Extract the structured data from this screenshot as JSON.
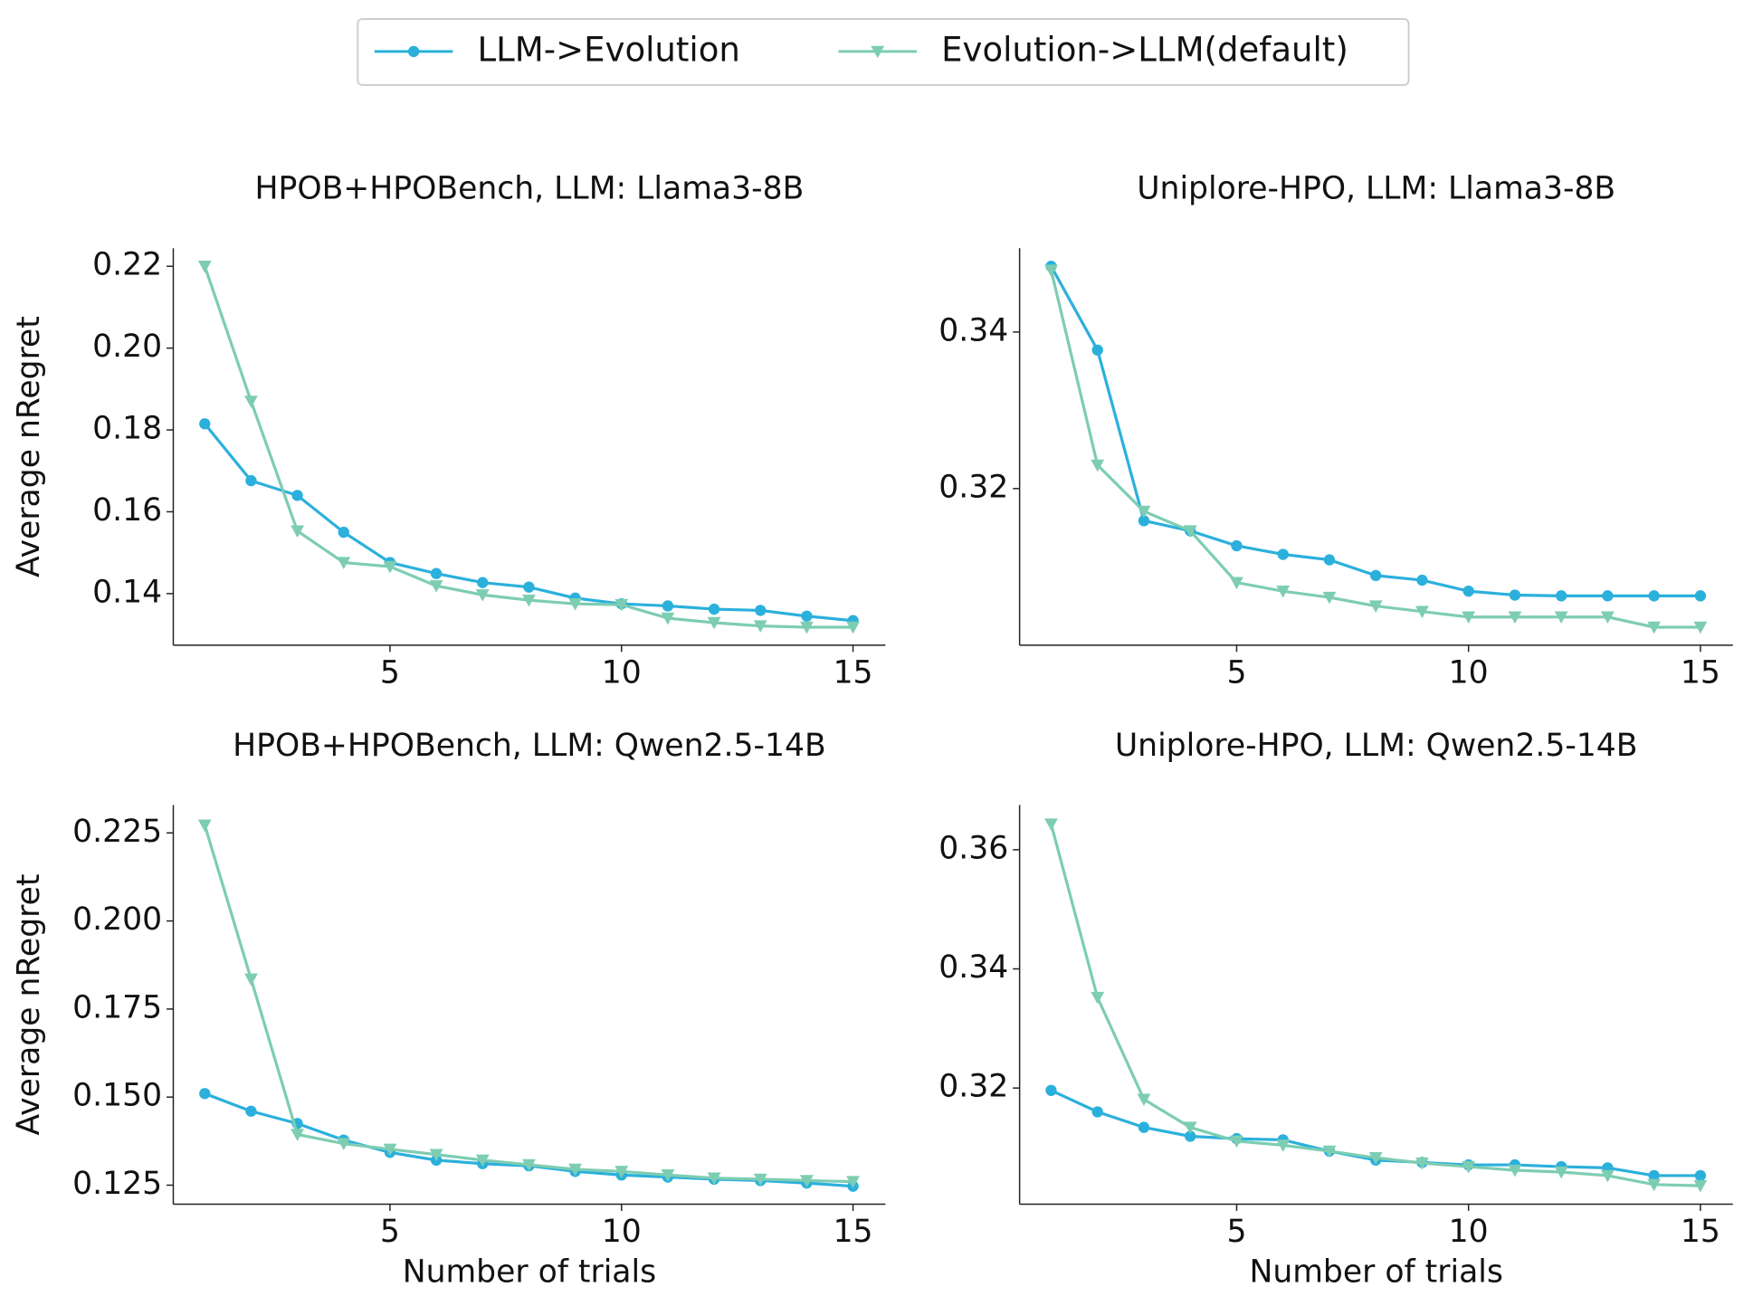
{
  "chart_data": [
    {
      "type": "line",
      "title": "HPOB+HPOBench, LLM: Llama3-8B",
      "ylabel": "Average nRegret",
      "x": [
        1,
        2,
        3,
        4,
        5,
        6,
        7,
        8,
        9,
        10,
        11,
        12,
        13,
        14,
        15
      ],
      "xlim": [
        0.32,
        15.7
      ],
      "xticks": [
        5,
        10,
        15
      ],
      "ylim": [
        0.1274,
        0.2244
      ],
      "yticks": [
        0.14,
        0.16,
        0.18,
        {
          "value": 0.2,
          "label": "0.20"
        },
        0.22
      ],
      "series": [
        {
          "name": "LLM->Evolution",
          "color": "#2bb0dc",
          "marker": "circle",
          "values": [
            0.1815,
            0.1676,
            0.164,
            0.155,
            0.1476,
            0.1449,
            0.1427,
            0.1416,
            0.1389,
            0.1375,
            0.137,
            0.1362,
            0.1359,
            0.1345,
            0.1334
          ]
        },
        {
          "name": "Evolution->LLM(default)",
          "color": "#7dcdb2",
          "marker": "triangle-down",
          "values": [
            0.22,
            0.187,
            0.1553,
            0.1476,
            0.1466,
            0.1419,
            0.1397,
            0.1384,
            0.1375,
            0.1373,
            0.134,
            0.1329,
            0.1321,
            0.1318,
            0.1318
          ]
        }
      ]
    },
    {
      "type": "line",
      "title": "Uniplore-HPO, LLM: Llama3-8B",
      "x": [
        1,
        2,
        3,
        4,
        5,
        6,
        7,
        8,
        9,
        10,
        11,
        12,
        13,
        14,
        15
      ],
      "xlim": [
        0.32,
        15.7
      ],
      "xticks": [
        5,
        10,
        15
      ],
      "ylim": [
        0.3,
        0.3507
      ],
      "yticks": [
        0.32,
        0.34
      ],
      "series": [
        {
          "name": "LLM->Evolution",
          "color": "#2bb0dc",
          "marker": "circle",
          "values": [
            0.3484,
            0.3377,
            0.3159,
            0.3146,
            0.3127,
            0.3116,
            0.3109,
            0.3089,
            0.3083,
            0.3069,
            0.3064,
            0.3063,
            0.3063,
            0.3063,
            0.3063
          ]
        },
        {
          "name": "Evolution->LLM(default)",
          "color": "#7dcdb2",
          "marker": "triangle-down",
          "values": [
            0.3479,
            0.323,
            0.3171,
            0.3146,
            0.308,
            0.3069,
            0.3061,
            0.305,
            0.3043,
            0.3036,
            0.3036,
            0.3036,
            0.3036,
            0.3023,
            0.3023
          ]
        }
      ]
    },
    {
      "type": "line",
      "title": "HPOB+HPOBench, LLM: Qwen2.5-14B",
      "ylabel": "Average nRegret",
      "xlabel": "Number of trials",
      "x": [
        1,
        2,
        3,
        4,
        5,
        6,
        7,
        8,
        9,
        10,
        11,
        12,
        13,
        14,
        15
      ],
      "xlim": [
        0.32,
        15.7
      ],
      "xticks": [
        5,
        10,
        15
      ],
      "ylim": [
        0.1196,
        0.2329
      ],
      "yticks": [
        0.125,
        {
          "value": 0.15,
          "label": "0.150"
        },
        0.175,
        {
          "value": 0.2,
          "label": "0.200"
        },
        0.225
      ],
      "series": [
        {
          "name": "LLM->Evolution",
          "color": "#2bb0dc",
          "marker": "circle",
          "values": [
            0.151,
            0.146,
            0.1425,
            0.1378,
            0.1343,
            0.1321,
            0.1311,
            0.1305,
            0.1289,
            0.1279,
            0.1273,
            0.1267,
            0.1263,
            0.1256,
            0.1247
          ]
        },
        {
          "name": "Evolution->LLM(default)",
          "color": "#7dcdb2",
          "marker": "triangle-down",
          "values": [
            0.2272,
            0.1835,
            0.1394,
            0.1368,
            0.1352,
            0.1337,
            0.1321,
            0.1308,
            0.1295,
            0.1289,
            0.1279,
            0.127,
            0.1267,
            0.1263,
            0.126
          ]
        }
      ]
    },
    {
      "type": "line",
      "title": "Uniplore-HPO, LLM: Qwen2.5-14B",
      "xlabel": "Number of trials",
      "x": [
        1,
        2,
        3,
        4,
        5,
        6,
        7,
        8,
        9,
        10,
        11,
        12,
        13,
        14,
        15
      ],
      "xlim": [
        0.32,
        15.7
      ],
      "xticks": [
        5,
        10,
        15
      ],
      "ylim": [
        0.3005,
        0.3675
      ],
      "yticks": [
        0.32,
        0.34,
        0.36
      ],
      "series": [
        {
          "name": "LLM->Evolution",
          "color": "#2bb0dc",
          "marker": "circle",
          "values": [
            0.3196,
            0.316,
            0.3134,
            0.3119,
            0.3115,
            0.3113,
            0.3094,
            0.3079,
            0.3075,
            0.3071,
            0.3071,
            0.3068,
            0.3066,
            0.3053,
            0.3053
          ]
        },
        {
          "name": "Evolution->LLM(default)",
          "color": "#7dcdb2",
          "marker": "triangle-down",
          "values": [
            0.3643,
            0.3352,
            0.3181,
            0.3134,
            0.3111,
            0.3104,
            0.3094,
            0.3083,
            0.3074,
            0.3068,
            0.3062,
            0.3059,
            0.3053,
            0.3038,
            0.3036
          ]
        }
      ]
    }
  ]
}
